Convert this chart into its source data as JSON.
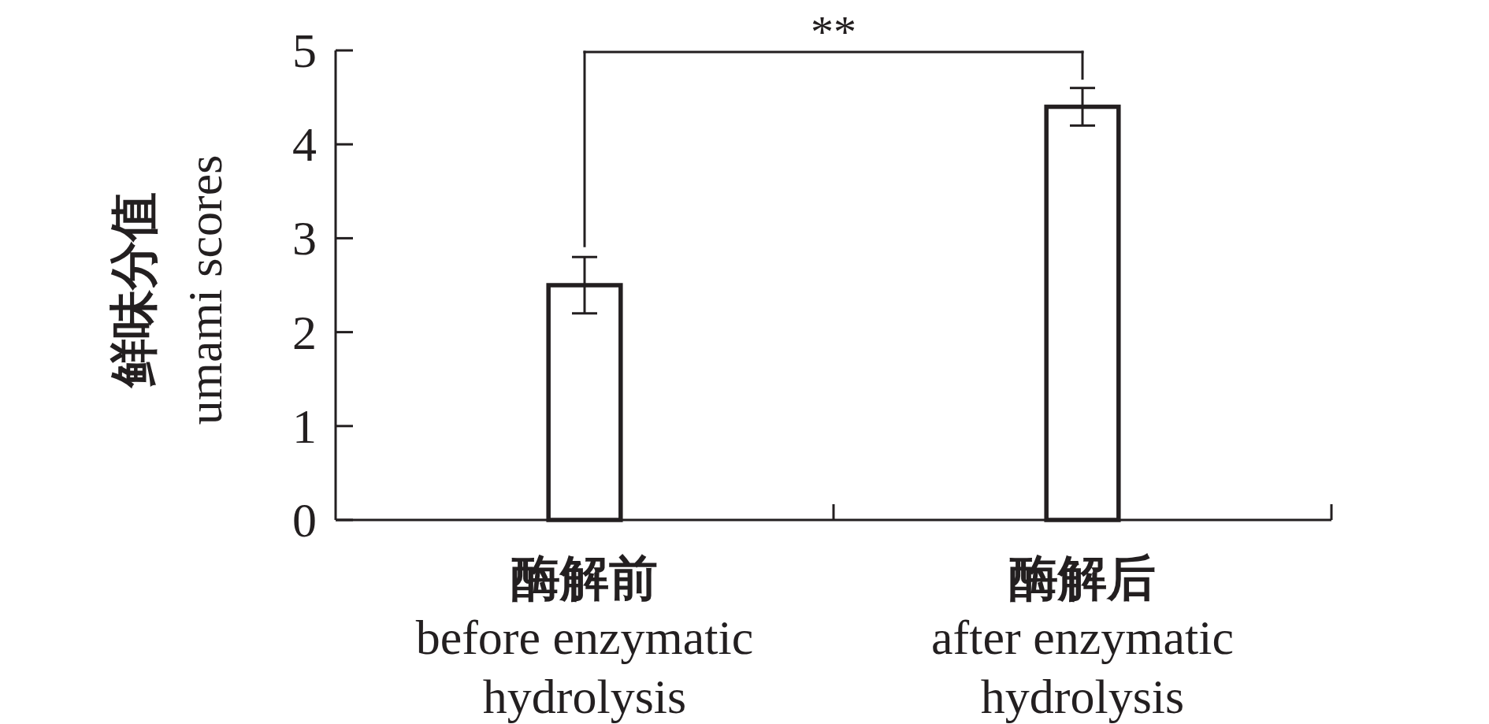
{
  "chart_data": {
    "type": "bar",
    "categories": [
      "酶解前\nbefore enzymatic\nhydrolysis",
      "酶解后\nafter enzymatic\nhydrolysis"
    ],
    "values": [
      2.5,
      4.4
    ],
    "errors": [
      0.3,
      0.2
    ],
    "color": "#ffffff",
    "ylabel": "鲜味分值\numami scores",
    "ylim": [
      0,
      5
    ],
    "yticks": [
      0,
      1,
      2,
      3,
      4,
      5
    ],
    "annotations": [
      "**"
    ]
  }
}
